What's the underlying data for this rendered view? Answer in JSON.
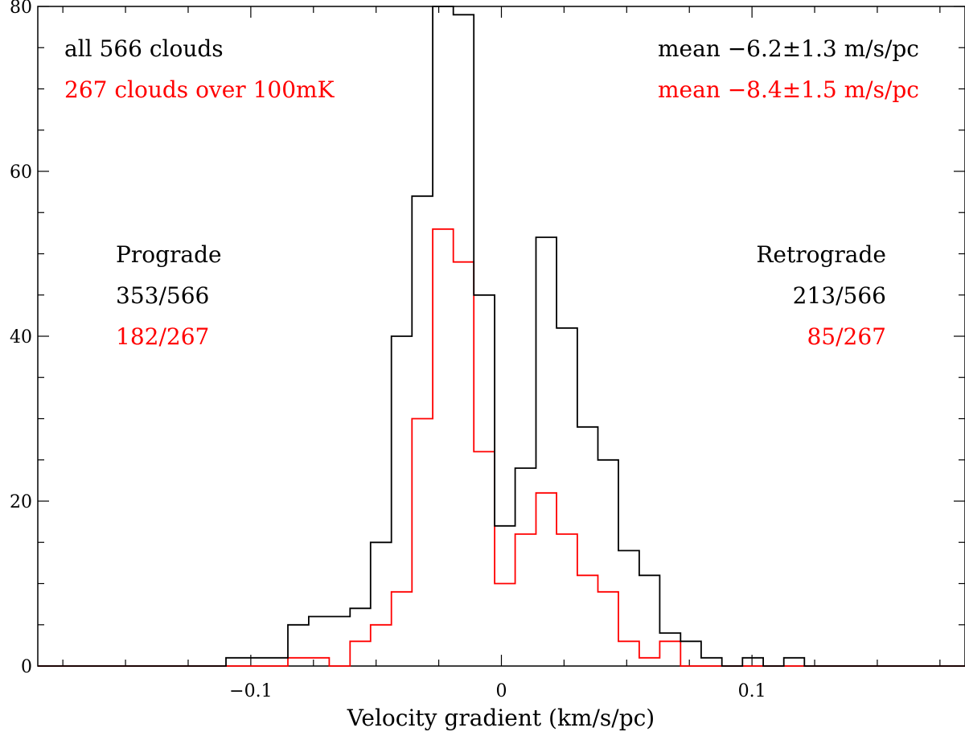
{
  "chart_data": {
    "type": "histogram",
    "xlabel": "Velocity gradient (km/s/pc)",
    "ylabel": "",
    "xlim": [
      -0.185,
      0.185
    ],
    "ylim": [
      0,
      80
    ],
    "x_tick_labels": [
      {
        "value": -0.1,
        "label": "−0.1"
      },
      {
        "value": 0,
        "label": "0"
      },
      {
        "value": 0.1,
        "label": "0.1"
      }
    ],
    "y_tick_labels": [
      {
        "value": 0,
        "label": "0"
      },
      {
        "value": 20,
        "label": "20"
      },
      {
        "value": 40,
        "label": "40"
      },
      {
        "value": 60,
        "label": "60"
      },
      {
        "value": 80,
        "label": "80"
      }
    ],
    "bin_edges": [
      -0.1099,
      -0.1017,
      -0.0934,
      -0.0852,
      -0.0769,
      -0.0687,
      -0.0604,
      -0.0522,
      -0.0439,
      -0.0357,
      -0.0274,
      -0.0192,
      -0.011,
      -0.0027,
      0.0055,
      0.0138,
      0.022,
      0.0303,
      0.0385,
      0.0467,
      0.055,
      0.0632,
      0.0715,
      0.0797,
      0.088,
      0.0962,
      0.1045,
      0.1127,
      0.1209
    ],
    "series": [
      {
        "color": "#000000",
        "counts": [
          1,
          1,
          1,
          5,
          6,
          6,
          7,
          15,
          40,
          57,
          80,
          79,
          45,
          17,
          24,
          52,
          41,
          29,
          25,
          14,
          11,
          4,
          3,
          1,
          0,
          1,
          0,
          1
        ]
      },
      {
        "color": "#ff0000",
        "counts": [
          0,
          0,
          0,
          1,
          1,
          0,
          3,
          5,
          9,
          30,
          53,
          49,
          26,
          10,
          16,
          21,
          16,
          11,
          9,
          3,
          1,
          3,
          0,
          0,
          0,
          0,
          0,
          0
        ]
      }
    ],
    "annotations": {
      "all_clouds": "all 566 clouds",
      "bright_clouds": "267 clouds over 100mK",
      "mean_all": "mean −6.2±1.3 m/s/pc",
      "mean_bright": "mean −8.4±1.5 m/s/pc",
      "prograde": "Prograde",
      "prograde_all": "353/566",
      "prograde_bright": "182/267",
      "retrograde": "Retrograde",
      "retrograde_all": "213/566",
      "retrograde_bright": "85/267"
    }
  }
}
